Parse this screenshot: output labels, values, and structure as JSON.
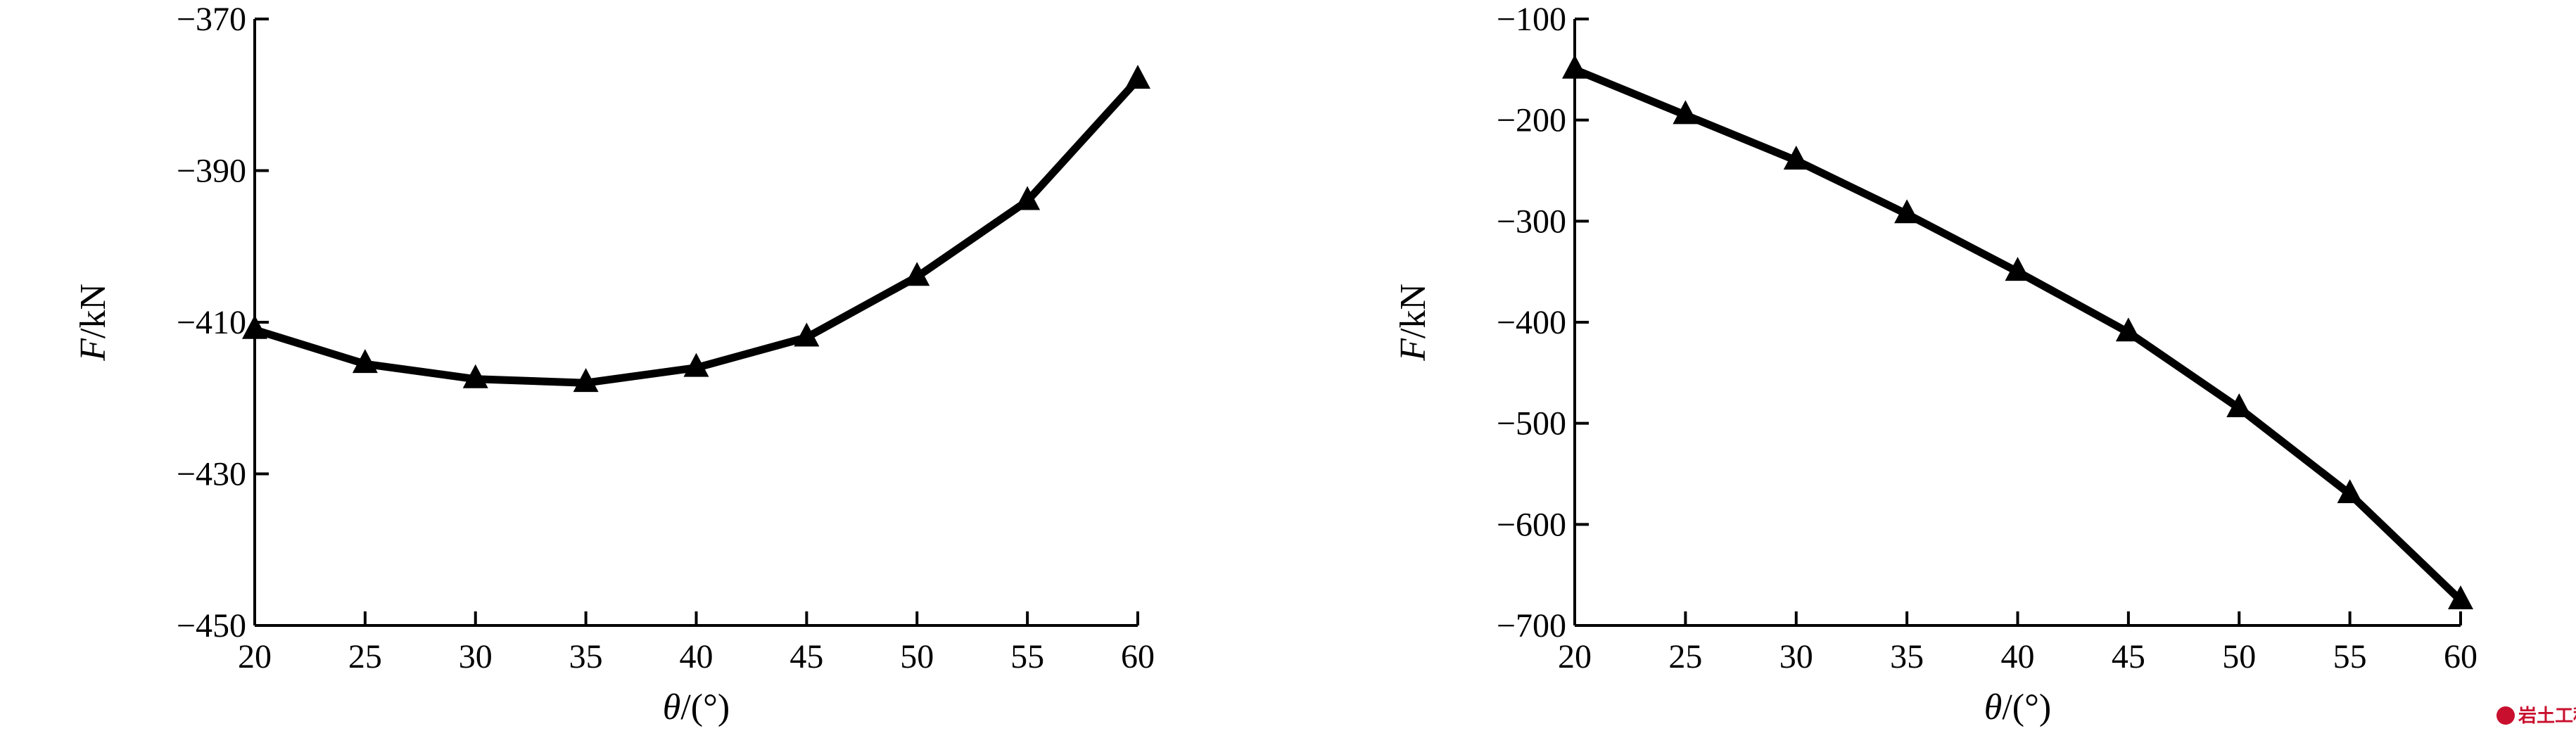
{
  "chart_data": [
    {
      "type": "line",
      "x": [
        20,
        25,
        30,
        35,
        40,
        45,
        50,
        55,
        60
      ],
      "series": [
        {
          "values": [
            -411,
            -415.5,
            -417.5,
            -418,
            -416,
            -412,
            -404,
            -394,
            -378
          ]
        }
      ],
      "xlabel_var": "θ",
      "xlabel_unit": "/(°)",
      "ylabel_var": "F",
      "ylabel_unit": "/kN",
      "xlim": [
        20,
        60
      ],
      "ylim": [
        -450,
        -370
      ],
      "xticks": [
        20,
        25,
        30,
        35,
        40,
        45,
        50,
        55,
        60
      ],
      "yticks": [
        -450,
        -430,
        -410,
        -390,
        -370
      ],
      "ytick_labels": [
        "−450",
        "−430",
        "−410",
        "−390",
        "−370"
      ],
      "marker": "triangle",
      "grid": false
    },
    {
      "type": "line",
      "x": [
        20,
        25,
        30,
        35,
        40,
        45,
        50,
        55,
        60
      ],
      "series": [
        {
          "values": [
            -150,
            -195,
            -240,
            -293,
            -350,
            -410,
            -485,
            -570,
            -675
          ]
        }
      ],
      "xlabel_var": "θ",
      "xlabel_unit": "/(°)",
      "ylabel_var": "F",
      "ylabel_unit": "/kN",
      "xlim": [
        20,
        60
      ],
      "ylim": [
        -700,
        -100
      ],
      "xticks": [
        20,
        25,
        30,
        35,
        40,
        45,
        50,
        55,
        60
      ],
      "yticks": [
        -700,
        -600,
        -500,
        -400,
        -300,
        -200,
        -100
      ],
      "ytick_labels": [
        "−700",
        "−600",
        "−500",
        "−400",
        "−300",
        "−200",
        "−100"
      ],
      "marker": "triangle",
      "grid": false
    }
  ],
  "watermark": {
    "text": "岩土工程",
    "icon": "seal-logo-icon",
    "color": "#c8102e"
  }
}
